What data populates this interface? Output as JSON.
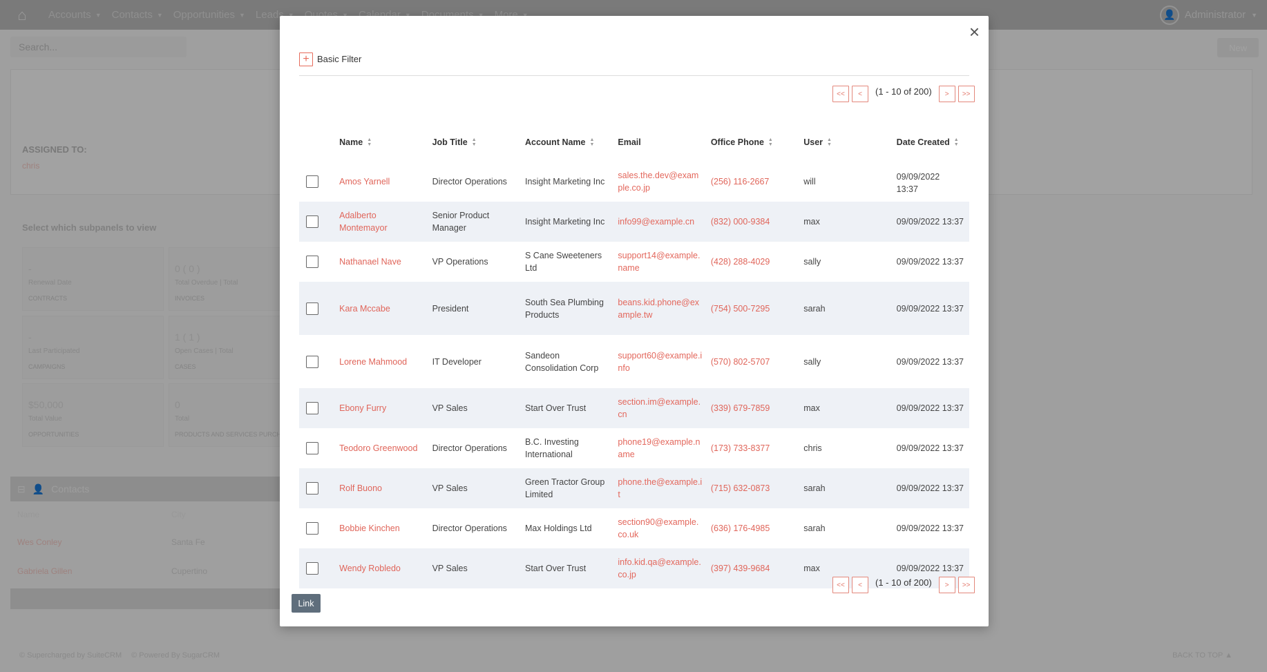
{
  "nav": {
    "items": [
      {
        "label": "Accounts"
      },
      {
        "label": "Contacts"
      },
      {
        "label": "Opportunities"
      },
      {
        "label": "Leads"
      },
      {
        "label": "Quotes"
      },
      {
        "label": "Calendar"
      },
      {
        "label": "Documents"
      },
      {
        "label": "More"
      }
    ],
    "user_label": "Administrator"
  },
  "background": {
    "search_placeholder": "Search...",
    "new_button": "New",
    "assigned_label": "ASSIGNED TO:",
    "assigned_value": "chris",
    "subpanels_header": "Select which subpanels to view",
    "tiles": [
      {
        "big": "-",
        "small": "Renewal Date",
        "cap": "CONTRACTS"
      },
      {
        "big": "0 ( 0 )",
        "small": "Total Overdue | Total",
        "cap": "INVOICES"
      },
      {
        "big": "-",
        "small": "Last Participated",
        "cap": "CAMPAIGNS"
      },
      {
        "big": "1 ( 1 )",
        "small": "Open Cases | Total",
        "cap": "CASES"
      },
      {
        "big": "$50,000",
        "small": "Total Value",
        "cap": "OPPORTUNITIES"
      },
      {
        "big": "0",
        "small": "Total",
        "cap": "PRODUCTS AND SERVICES PURCHA"
      }
    ],
    "contacts_panel": {
      "title": "Contacts",
      "columns": [
        "Name",
        "City"
      ],
      "rows": [
        {
          "name": "Wes Conley",
          "city": "Santa Fe"
        },
        {
          "name": "Gabriela Gillen",
          "city": "Cupertino"
        }
      ]
    },
    "footer": {
      "supercharged": "© Supercharged by SuiteCRM",
      "powered": "© Powered By SugarCRM",
      "back_to_top": "BACK TO TOP"
    }
  },
  "modal": {
    "close_glyph": "×",
    "filter_plus": "+",
    "filter_label": "Basic Filter",
    "pager": {
      "first": "<<",
      "prev": "<",
      "summary": "(1 - 10 of 200)",
      "next": ">",
      "last": ">>"
    },
    "columns": {
      "name": "Name",
      "job_title": "Job Title",
      "account_name": "Account Name",
      "email": "Email",
      "office_phone": "Office Phone",
      "user": "User",
      "date_created": "Date Created"
    },
    "rows": [
      {
        "name": "Amos Yarnell",
        "job": "Director Operations",
        "account": "Insight Marketing Inc",
        "email": "sales.the.dev@example.co.jp",
        "phone": "(256) 116-2667",
        "user": "will",
        "date": "09/09/2022 13:37"
      },
      {
        "name": "Adalberto Montemayor",
        "job": "Senior Product Manager",
        "account": "Insight Marketing Inc",
        "email": "info99@example.cn",
        "phone": "(832) 000-9384",
        "user": "max",
        "date": "09/09/2022 13:37"
      },
      {
        "name": "Nathanael Nave",
        "job": "VP Operations",
        "account": "S Cane Sweeteners Ltd",
        "email": "support14@example.name",
        "phone": "(428) 288-4029",
        "user": "sally",
        "date": "09/09/2022 13:37"
      },
      {
        "name": "Kara Mccabe",
        "job": "President",
        "account": "South Sea Plumbing Products",
        "email": "beans.kid.phone@example.tw",
        "phone": "(754) 500-7295",
        "user": "sarah",
        "date": "09/09/2022 13:37"
      },
      {
        "name": "Lorene Mahmood",
        "job": "IT Developer",
        "account": "Sandeon Consolidation Corp",
        "email": "support60@example.info",
        "phone": "(570) 802-5707",
        "user": "sally",
        "date": "09/09/2022 13:37"
      },
      {
        "name": "Ebony Furry",
        "job": "VP Sales",
        "account": "Start Over Trust",
        "email": "section.im@example.cn",
        "phone": "(339) 679-7859",
        "user": "max",
        "date": "09/09/2022 13:37"
      },
      {
        "name": "Teodoro Greenwood",
        "job": "Director Operations",
        "account": "B.C. Investing International",
        "email": "phone19@example.name",
        "phone": "(173) 733-8377",
        "user": "chris",
        "date": "09/09/2022 13:37"
      },
      {
        "name": "Rolf Buono",
        "job": "VP Sales",
        "account": "Green Tractor Group Limited",
        "email": "phone.the@example.it",
        "phone": "(715) 632-0873",
        "user": "sarah",
        "date": "09/09/2022 13:37"
      },
      {
        "name": "Bobbie Kinchen",
        "job": "Director Operations",
        "account": "Max Holdings Ltd",
        "email": "section90@example.co.uk",
        "phone": "(636) 176-4985",
        "user": "sarah",
        "date": "09/09/2022 13:37"
      },
      {
        "name": "Wendy Robledo",
        "job": "VP Sales",
        "account": "Start Over Trust",
        "email": "info.kid.qa@example.co.jp",
        "phone": "(397) 439-9684",
        "user": "max",
        "date": "09/09/2022 13:37"
      }
    ],
    "link_button": "Link"
  }
}
